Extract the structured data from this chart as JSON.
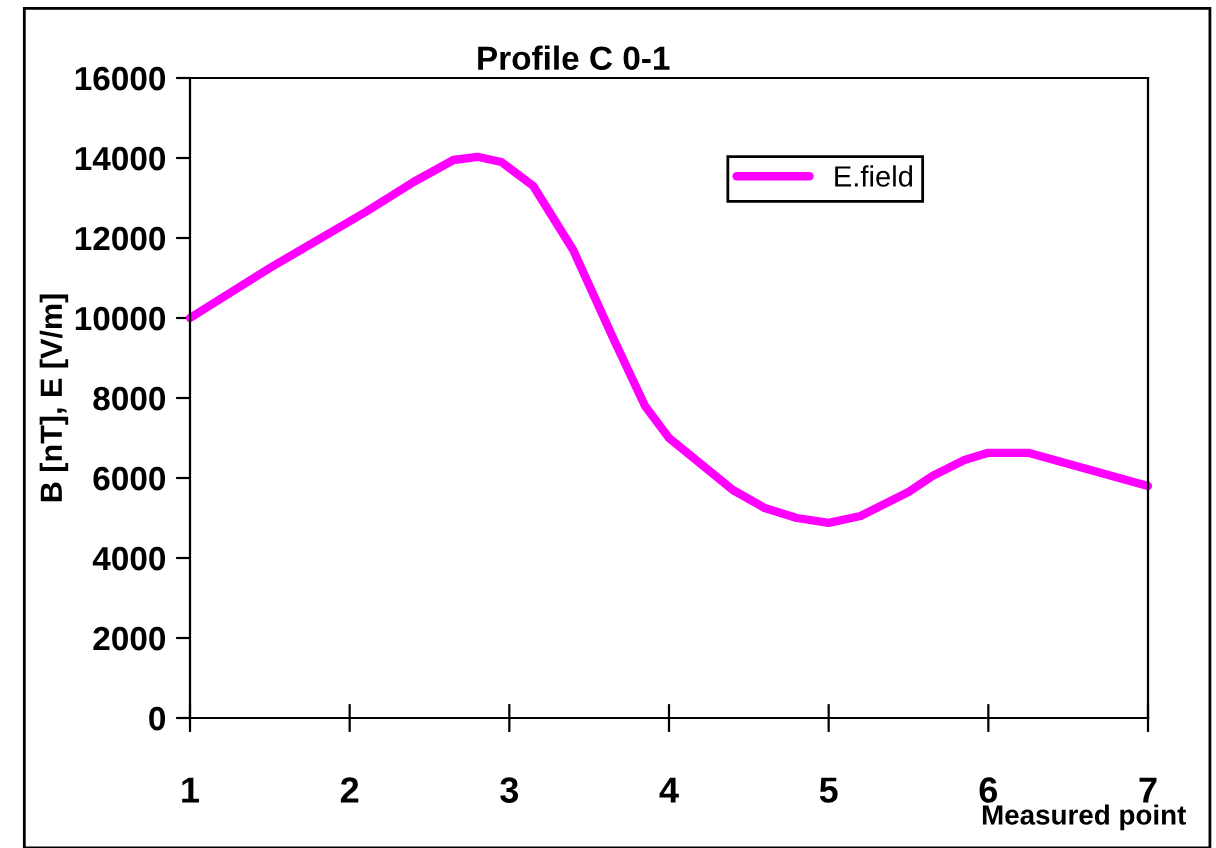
{
  "chart_data": {
    "type": "line",
    "title": "Profile C 0-1",
    "xlabel": "Measured point",
    "ylabel": "B [nT], E [V/m]",
    "series": [
      {
        "name": "E.field",
        "color": "#ff00ff",
        "x": [
          1,
          1.5,
          2.1,
          2.4,
          2.65,
          2.8,
          2.95,
          3.15,
          3.4,
          3.65,
          3.85,
          4.0,
          4.4,
          4.6,
          4.8,
          5.0,
          5.2,
          5.5,
          5.65,
          5.85,
          6.0,
          6.25,
          7
        ],
        "values": [
          10000,
          11250,
          12650,
          13400,
          13950,
          14030,
          13900,
          13300,
          11700,
          9500,
          7800,
          7000,
          5700,
          5250,
          5000,
          4880,
          5050,
          5650,
          6050,
          6450,
          6630,
          6630,
          5800
        ]
      }
    ],
    "xlim": [
      1,
      7
    ],
    "xticks": [
      1,
      2,
      3,
      4,
      5,
      6,
      7
    ],
    "ylim": [
      0,
      16000
    ],
    "yticks": [
      0,
      2000,
      4000,
      6000,
      8000,
      10000,
      12000,
      14000,
      16000
    ],
    "grid": false,
    "legend": "top right",
    "marker": "none",
    "line_style": "solid"
  }
}
